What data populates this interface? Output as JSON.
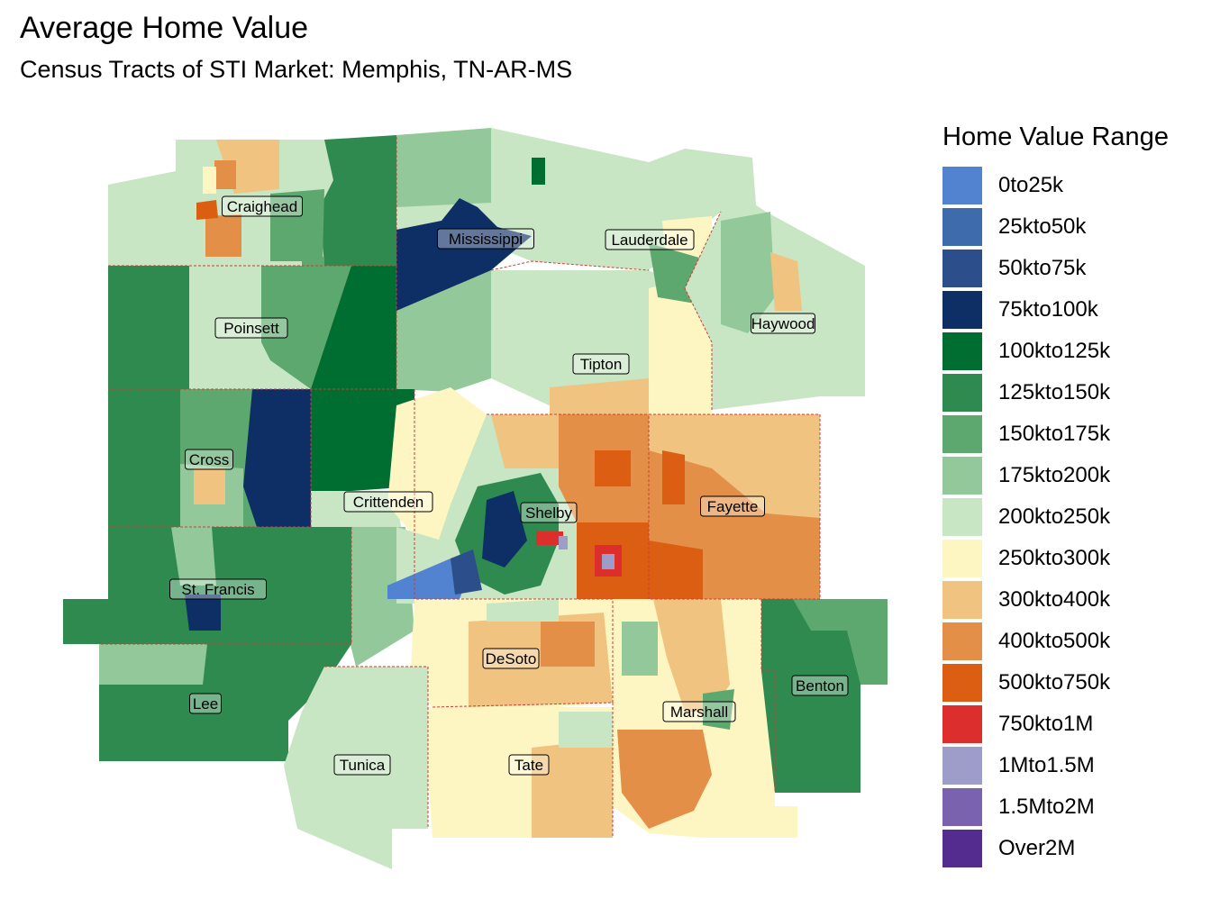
{
  "title": "Average Home Value",
  "subtitle": "Census Tracts of STI Market: Memphis, TN-AR-MS",
  "legend": {
    "title": "Home Value Range",
    "items": [
      {
        "label": "0to25k",
        "color": "#5283d0"
      },
      {
        "label": "25kto50k",
        "color": "#3e6bac"
      },
      {
        "label": "50kto75k",
        "color": "#2c4e8b"
      },
      {
        "label": "75kto100k",
        "color": "#0e2f66"
      },
      {
        "label": "100kto125k",
        "color": "#006e30"
      },
      {
        "label": "125kto150k",
        "color": "#2f8a50"
      },
      {
        "label": "150kto175k",
        "color": "#5da86e"
      },
      {
        "label": "175kto200k",
        "color": "#93c99a"
      },
      {
        "label": "200kto250k",
        "color": "#c8e6c3"
      },
      {
        "label": "250kto300k",
        "color": "#fdf6c3"
      },
      {
        "label": "300kto400k",
        "color": "#f0c380"
      },
      {
        "label": "400kto500k",
        "color": "#e48f48"
      },
      {
        "label": "500kto750k",
        "color": "#dc5e12"
      },
      {
        "label": "750kto1M",
        "color": "#dc2e2c"
      },
      {
        "label": "1Mto1.5M",
        "color": "#9e9cc8"
      },
      {
        "label": "1.5Mto2M",
        "color": "#7a62ae"
      },
      {
        "label": "Over2M",
        "color": "#542b8e"
      }
    ]
  },
  "counties": [
    {
      "name": "Craighead"
    },
    {
      "name": "Mississippi"
    },
    {
      "name": "Lauderdale"
    },
    {
      "name": "Poinsett"
    },
    {
      "name": "Haywood"
    },
    {
      "name": "Tipton"
    },
    {
      "name": "Cross"
    },
    {
      "name": "Crittenden"
    },
    {
      "name": "Shelby"
    },
    {
      "name": "Fayette"
    },
    {
      "name": "St. Francis"
    },
    {
      "name": "DeSoto"
    },
    {
      "name": "Benton"
    },
    {
      "name": "Lee"
    },
    {
      "name": "Marshall"
    },
    {
      "name": "Tunica"
    },
    {
      "name": "Tate"
    }
  ]
}
